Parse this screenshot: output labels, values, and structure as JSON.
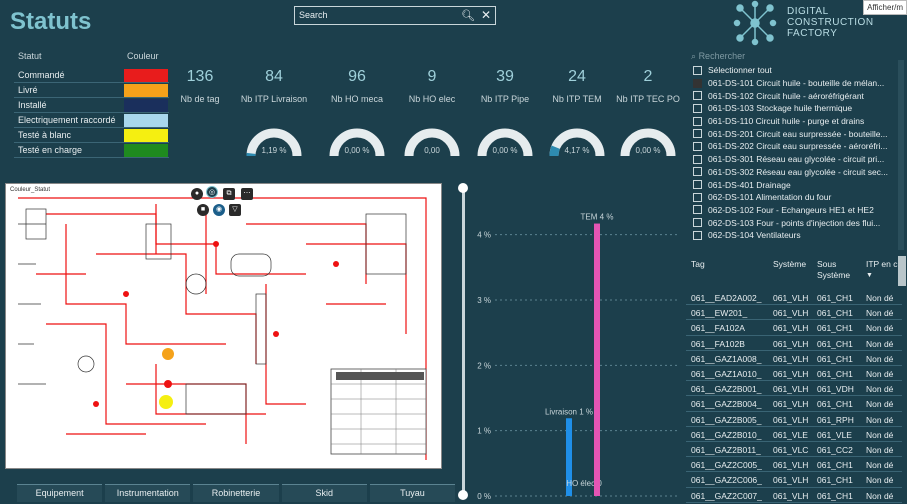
{
  "page": {
    "title": "Statuts",
    "corner_tip": "Afficher/m"
  },
  "search": {
    "placeholder": "Search"
  },
  "logo": {
    "line1": "DIGITAL",
    "line2": "CONSTRUCTION",
    "line3": "FACTORY"
  },
  "legend": {
    "header_statut": "Statut",
    "header_couleur": "Couleur",
    "rows": [
      {
        "label": "Commandé",
        "color": "#e81c1c"
      },
      {
        "label": "Livré",
        "color": "#f5a21a"
      },
      {
        "label": "Installé",
        "color": "#1a2f5c"
      },
      {
        "label": "Electriquement raccordé",
        "color": "#a9d7ec"
      },
      {
        "label": "Testé à blanc",
        "color": "#f5ef11"
      },
      {
        "label": "Testé en charge",
        "color": "#1f8a1f"
      }
    ]
  },
  "kpis": [
    {
      "value": "136",
      "label": "Nb de tag"
    },
    {
      "value": "84",
      "label": "Nb ITP Livraison",
      "gauge": "1,19 %",
      "fill": 0.0119
    },
    {
      "value": "96",
      "label": "Nb HO meca",
      "gauge": "0,00 %",
      "fill": 0
    },
    {
      "value": "9",
      "label": "Nb HO elec",
      "gauge": "0,00",
      "fill": 0
    },
    {
      "value": "39",
      "label": "Nb ITP Pipe",
      "gauge": "0,00 %",
      "fill": 0
    },
    {
      "value": "24",
      "label": "Nb ITP TEM",
      "gauge": "4,17 %",
      "fill": 0.0417
    },
    {
      "value": "2",
      "label": "Nb ITP TEC PO",
      "gauge": "0,00 %",
      "fill": 0
    }
  ],
  "drawing": {
    "label": "Couleur_Statut"
  },
  "tabs": [
    "Equipement",
    "Instrumentation",
    "Robinetterie",
    "Skid",
    "Tuyau"
  ],
  "chart_data": {
    "type": "bar",
    "categories": [
      "Livraison",
      "HO élec",
      "TEM"
    ],
    "data_labels": [
      "Livraison 1 %",
      "HO élec 0",
      "TEM 4 %"
    ],
    "values": [
      1.19,
      0,
      4.17
    ],
    "colors": [
      "#1f8fe8",
      "#1f8fe8",
      "#e455b4"
    ],
    "yticks": [
      "0 %",
      "1 %",
      "2 %",
      "3 %",
      "4 %"
    ],
    "ylim": [
      0,
      4.5
    ],
    "grid": true
  },
  "slicer": {
    "search_placeholder": "Rechercher",
    "items": [
      {
        "label": "Sélectionner tout",
        "filled": false
      },
      {
        "label": "061-DS-101 Circuit huile - bouteille de mélan...",
        "filled": true
      },
      {
        "label": "061-DS-102 Circuit huile - aéroréfrigérant",
        "filled": false
      },
      {
        "label": "061-DS-103 Stockage huile thermique",
        "filled": false
      },
      {
        "label": "061-DS-110 Circuit huile - purge et drains",
        "filled": false
      },
      {
        "label": "061-DS-201 Circuit eau surpressée - bouteille...",
        "filled": false
      },
      {
        "label": "061-DS-202 Circuit eau surpressée - aéroréfri...",
        "filled": false
      },
      {
        "label": "061-DS-301 Réseau eau glycolée - circuit pri...",
        "filled": false
      },
      {
        "label": "061-DS-302 Réseau eau glycolée - circuit sec...",
        "filled": false
      },
      {
        "label": "061-DS-401 Drainage",
        "filled": false
      },
      {
        "label": "062-DS-101 Alimentation du four",
        "filled": false
      },
      {
        "label": "062-DS-102 Four - Echangeurs HE1 et HE2",
        "filled": false
      },
      {
        "label": "062-DS-103 Four - points d'injection des flui...",
        "filled": false
      },
      {
        "label": "062-DS-104 Ventilateurs",
        "filled": false
      }
    ]
  },
  "table": {
    "headers": {
      "tag": "Tag",
      "systeme": "Système",
      "sous1": "Sous",
      "sous2": "Système",
      "itp": "ITP en c"
    },
    "rows": [
      [
        "061__EAD2A002_",
        "061_VLH",
        "061_CH1",
        "Non dé"
      ],
      [
        "061__EW201_",
        "061_VLH",
        "061_CH1",
        "Non dé"
      ],
      [
        "061__FA102A",
        "061_VLH",
        "061_CH1",
        "Non dé"
      ],
      [
        "061__FA102B",
        "061_VLH",
        "061_CH1",
        "Non dé"
      ],
      [
        "061__GAZ1A008_",
        "061_VLH",
        "061_CH1",
        "Non dé"
      ],
      [
        "061__GAZ1A010_",
        "061_VLH",
        "061_CH1",
        "Non dé"
      ],
      [
        "061__GAZ2B001_",
        "061_VLH",
        "061_VDH",
        "Non dé"
      ],
      [
        "061__GAZ2B004_",
        "061_VLH",
        "061_CH1",
        "Non dé"
      ],
      [
        "061__GAZ2B005_",
        "061_VLH",
        "061_RPH",
        "Non dé"
      ],
      [
        "061__GAZ2B010_",
        "061_VLE",
        "061_VLE",
        "Non dé"
      ],
      [
        "061__GAZ2B011_",
        "061_VLC",
        "061_CC2",
        "Non dé"
      ],
      [
        "061__GAZ2C005_",
        "061_VLH",
        "061_CH1",
        "Non dé"
      ],
      [
        "061__GAZ2C006_",
        "061_VLH",
        "061_CH1",
        "Non dé"
      ],
      [
        "061__GAZ2C007_",
        "061_VLH",
        "061_CH1",
        "Non dé"
      ]
    ]
  }
}
